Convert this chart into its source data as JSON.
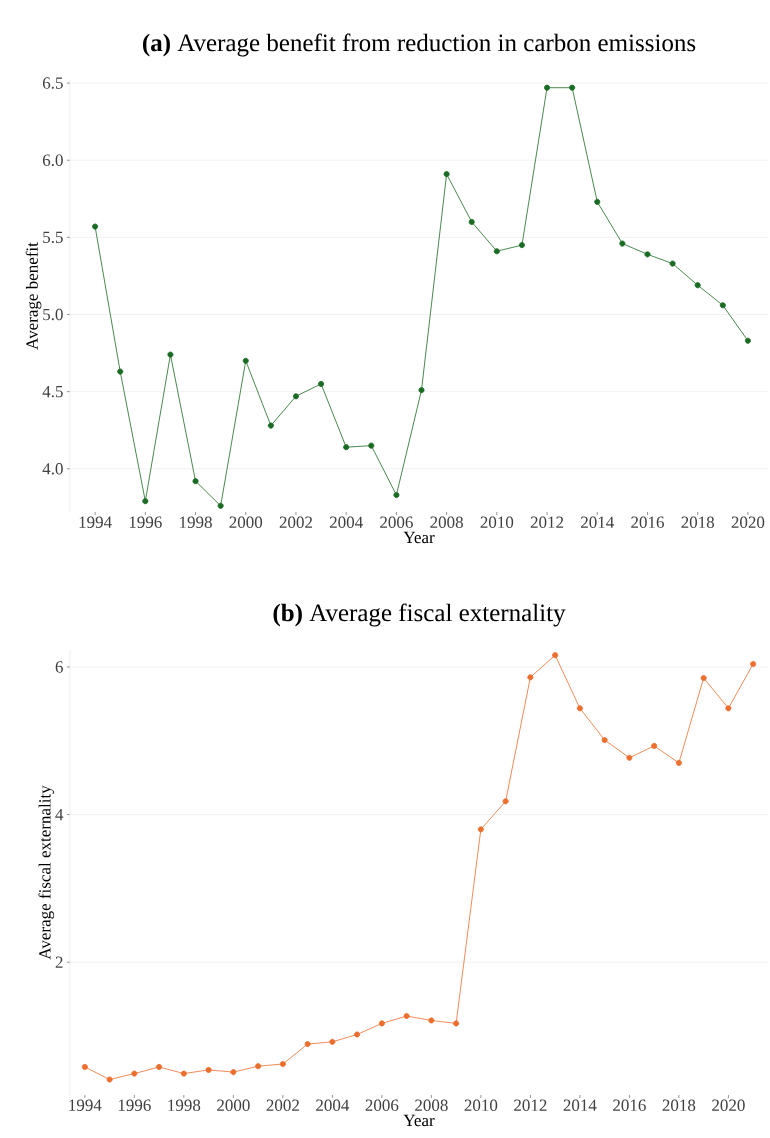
{
  "chart_data": [
    {
      "type": "line",
      "title": "**(a)** Average benefit from reduction in carbon emissions",
      "xlabel": "Year",
      "ylabel": "Average benefit",
      "color": "#1a6b23",
      "marker": "circle",
      "line_style": "solid",
      "grid": "y",
      "x": [
        1994,
        1995,
        1996,
        1997,
        1998,
        1999,
        2000,
        2001,
        2002,
        2003,
        2004,
        2005,
        2006,
        2007,
        2008,
        2009,
        2010,
        2011,
        2012,
        2013,
        2014,
        2015,
        2016,
        2017,
        2018,
        2019,
        2020
      ],
      "values": [
        5.57,
        4.63,
        3.79,
        4.74,
        3.92,
        3.76,
        4.7,
        4.28,
        4.47,
        4.55,
        4.14,
        4.15,
        3.83,
        4.51,
        5.91,
        5.6,
        5.41,
        5.45,
        6.47,
        6.47,
        5.73,
        5.46,
        5.39,
        5.33,
        5.19,
        5.06,
        4.83
      ],
      "xlim": [
        1993,
        2020.8
      ],
      "ylim": [
        3.72,
        6.52
      ],
      "xticks": [
        1994,
        1996,
        1998,
        2000,
        2002,
        2004,
        2006,
        2008,
        2010,
        2012,
        2014,
        2016,
        2018,
        2020
      ],
      "yticks": [
        {
          "value": 4,
          "label": "4.0"
        },
        4.5,
        {
          "value": 5,
          "label": "5.0"
        },
        5.5,
        {
          "value": 6,
          "label": "6.0"
        },
        6.5
      ]
    },
    {
      "type": "line",
      "title": "**(b)** Average fiscal externality",
      "xlabel": "Year",
      "ylabel": "Average fiscal externality",
      "color": "#eb6e2e",
      "marker": "circle",
      "line_style": "solid",
      "grid": "y",
      "x": [
        1994,
        1995,
        1996,
        1997,
        1998,
        1999,
        2000,
        2001,
        2002,
        2003,
        2004,
        2005,
        2006,
        2007,
        2008,
        2009,
        2010,
        2011,
        2012,
        2013,
        2014,
        2015,
        2016,
        2017,
        2018,
        2019,
        2020,
        2021
      ],
      "values": [
        0.58,
        0.41,
        0.49,
        0.58,
        0.49,
        0.54,
        0.51,
        0.59,
        0.62,
        0.89,
        0.92,
        1.02,
        1.17,
        1.27,
        1.21,
        1.17,
        3.8,
        4.18,
        5.86,
        6.16,
        5.44,
        5.01,
        4.77,
        4.93,
        4.7,
        5.85,
        5.44,
        6.04
      ],
      "xlim": [
        1993.4,
        2021.6
      ],
      "ylim": [
        0.2,
        6.23
      ],
      "xticks": [
        1994,
        1996,
        1998,
        2000,
        2002,
        2004,
        2006,
        2008,
        2010,
        2012,
        2014,
        2016,
        2018,
        2020
      ],
      "yticks": [
        2,
        4,
        6
      ]
    }
  ]
}
